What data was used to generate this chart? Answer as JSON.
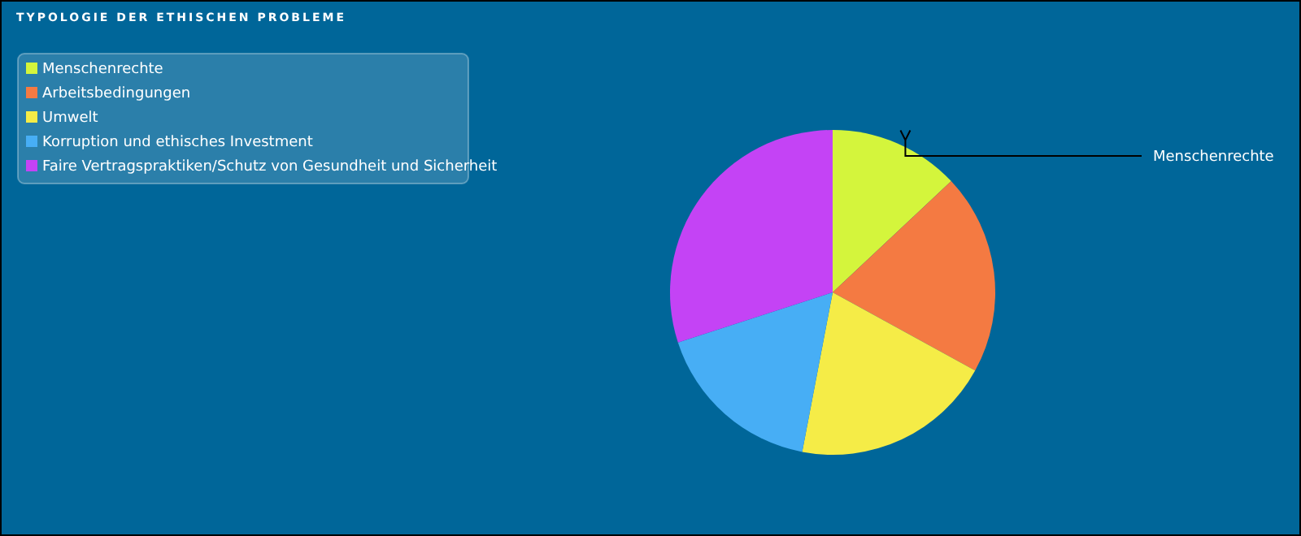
{
  "chart_data": {
    "type": "pie",
    "title": "TYPOLOGIE DER ETHISCHEN PROBLEME",
    "categories": [
      "Menschenrechte",
      "Arbeitsbedingungen",
      "Umwelt",
      "Korruption und ethisches Investment",
      "Faire Vertragspraktiken/Schutz von Gesundheit und Sicherheit"
    ],
    "values": [
      13,
      20,
      20,
      17,
      30
    ],
    "colors": [
      "#d4f53c",
      "#f47a42",
      "#f5ec47",
      "#47aef5",
      "#c443f5"
    ],
    "legend": "top left",
    "annotations": [
      "Menschenrechte"
    ]
  }
}
